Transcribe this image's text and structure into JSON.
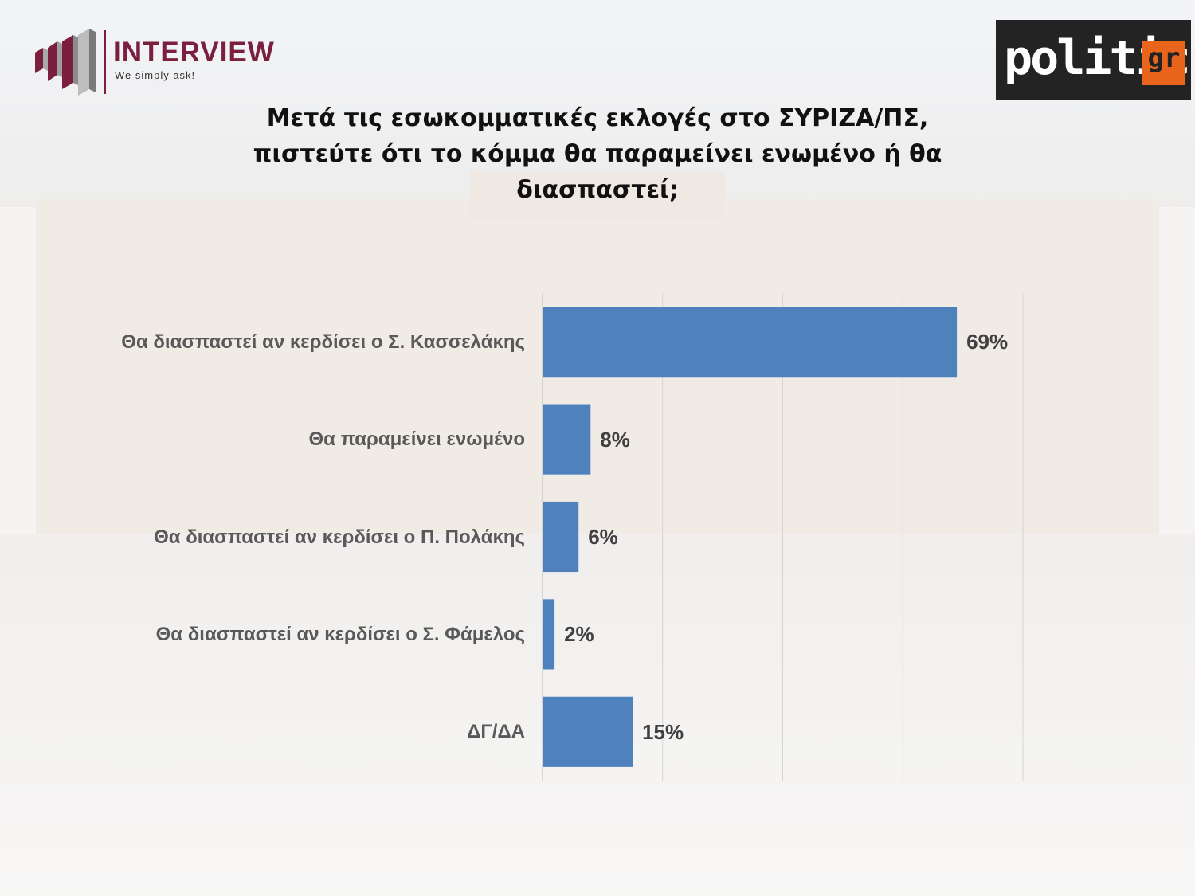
{
  "header": {
    "brand_left": "INTERVIEW",
    "brand_left_tagline": "We simply ask!",
    "brand_right": "politic",
    "brand_right_suffix": "gr"
  },
  "colors": {
    "bar": "#4f81bd",
    "brand_left": "#7a1f3d",
    "brand_right_accent": "#e8651b"
  },
  "chart_data": {
    "type": "bar",
    "orientation": "horizontal",
    "title": "Μετά τις εσωκομματικές εκλογές στο ΣΥΡΙΖΑ/ΠΣ, πιστεύτε ότι το κόμμα θα παραμείνει ενωμένο ή θα διασπαστεί;",
    "categories": [
      "Θα διασπαστεί αν κερδίσει ο Σ. Κασσελάκης",
      "Θα παραμείνει ενωμένο",
      "Θα διασπαστεί αν κερδίσει ο Π. Πολάκης",
      "Θα διασπαστεί αν κερδίσει ο Σ. Φάμελος",
      "ΔΓ/ΔΑ"
    ],
    "values": [
      69,
      8,
      6,
      2,
      15
    ],
    "value_labels": [
      "69%",
      "8%",
      "6%",
      "2%",
      "15%"
    ],
    "unit": "%",
    "xlim": [
      0,
      80
    ],
    "grid": true,
    "legend": "none"
  }
}
